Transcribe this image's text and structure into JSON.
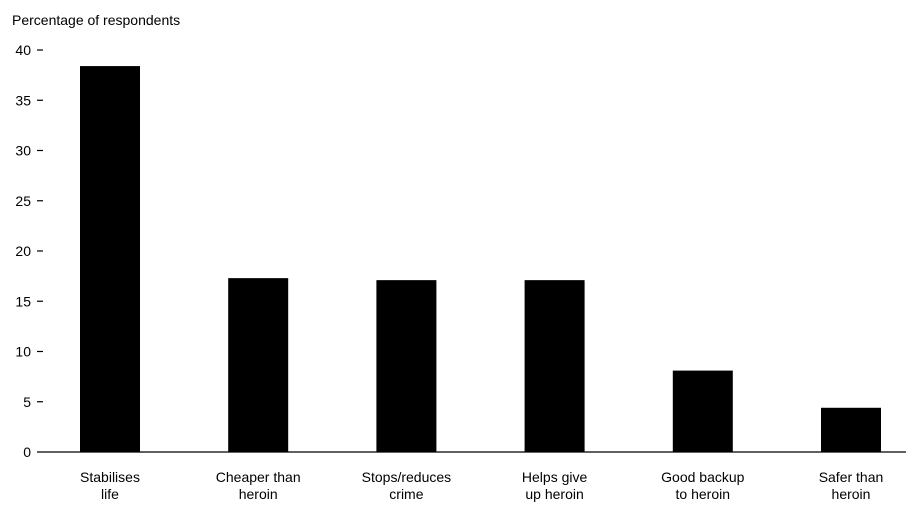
{
  "chart_data": {
    "type": "bar",
    "title": "",
    "ylabel": "Percentage of respondents",
    "xlabel": "",
    "ylim": [
      0,
      40
    ],
    "yticks": [
      "0",
      "5",
      "10",
      "15",
      "20",
      "25",
      "30",
      "35",
      "40"
    ],
    "categories": [
      [
        "Stabilises",
        "life"
      ],
      [
        "Cheaper than",
        "heroin"
      ],
      [
        "Stops/reduces",
        "crime"
      ],
      [
        "Helps give",
        "up heroin"
      ],
      [
        "Good backup",
        "to heroin"
      ],
      [
        "Safer than",
        "heroin"
      ]
    ],
    "values": [
      38.4,
      17.3,
      17.1,
      17.1,
      8.1,
      4.4
    ],
    "grid": false,
    "colors": {
      "bar": "#000000",
      "axis": "#000000",
      "background": "#ffffff"
    }
  }
}
